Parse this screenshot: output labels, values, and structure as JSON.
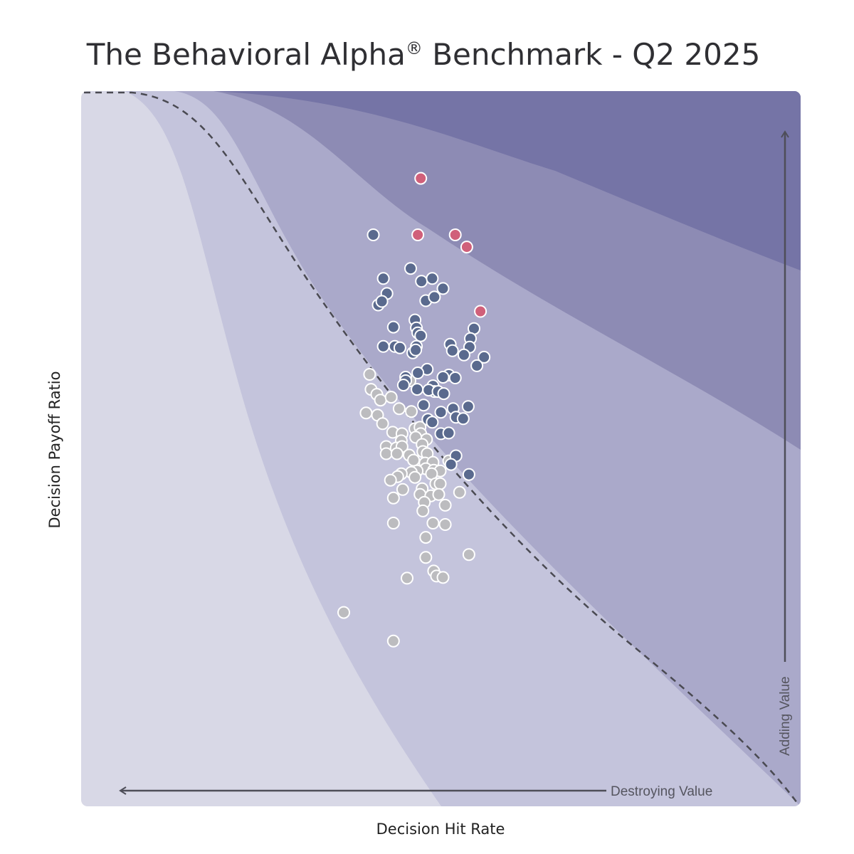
{
  "title": "The Behavioral Alpha",
  "title_mark": "®",
  "title_suffix": " Benchmark - Q2 2025",
  "colors": {
    "zone1": "#d8d8e6",
    "zone2": "#c4c4dc",
    "zone3": "#aaa9ca",
    "zone4": "#8d8bb4",
    "zone5": "#7574a6",
    "point_grey": "#bcbcbf",
    "point_blue": "#5a6a8e",
    "point_red": "#d0607a",
    "arrow": "#4e4e58"
  },
  "chart_data": {
    "type": "scatter",
    "title": "The Behavioral Alpha® Benchmark - Q2 2025",
    "xlabel": "Decision Hit Rate",
    "ylabel": "Decision Payoff Ratio",
    "xlim": [
      0,
      100
    ],
    "ylim": [
      0,
      100
    ],
    "annotations": [
      "Destroying Value",
      "Adding Value"
    ],
    "series": [
      {
        "color": "#d0607a",
        "points": [
          [
            47.2,
            87.8
          ],
          [
            46.8,
            79.9
          ],
          [
            52.0,
            79.9
          ],
          [
            53.6,
            78.2
          ],
          [
            55.5,
            69.2
          ]
        ]
      },
      {
        "color": "#5a6a8e",
        "points": [
          [
            40.6,
            79.9
          ],
          [
            45.8,
            75.2
          ],
          [
            42.0,
            73.8
          ],
          [
            47.3,
            73.4
          ],
          [
            48.8,
            73.8
          ],
          [
            50.3,
            72.4
          ],
          [
            42.5,
            71.7
          ],
          [
            47.9,
            70.7
          ],
          [
            49.1,
            71.2
          ],
          [
            41.3,
            70.1
          ],
          [
            41.8,
            70.6
          ],
          [
            46.4,
            68.0
          ],
          [
            43.4,
            67.0
          ],
          [
            46.6,
            66.9
          ],
          [
            46.8,
            66.2
          ],
          [
            47.2,
            65.8
          ],
          [
            54.6,
            66.8
          ],
          [
            54.1,
            65.4
          ],
          [
            42.0,
            64.3
          ],
          [
            43.6,
            64.3
          ],
          [
            44.3,
            64.1
          ],
          [
            46.6,
            64.3
          ],
          [
            51.3,
            64.6
          ],
          [
            54.0,
            64.2
          ],
          [
            51.6,
            63.7
          ],
          [
            53.2,
            63.1
          ],
          [
            56.0,
            62.8
          ],
          [
            46.1,
            63.4
          ],
          [
            46.5,
            63.8
          ],
          [
            55.0,
            61.6
          ],
          [
            48.1,
            61.1
          ],
          [
            51.1,
            60.3
          ],
          [
            45.1,
            60.0
          ],
          [
            46.8,
            60.6
          ],
          [
            50.3,
            60.0
          ],
          [
            52.0,
            59.9
          ],
          [
            45.1,
            59.5
          ],
          [
            44.8,
            58.9
          ],
          [
            48.9,
            58.8
          ],
          [
            49.1,
            58.0
          ],
          [
            46.7,
            58.3
          ],
          [
            48.3,
            58.2
          ],
          [
            49.6,
            58.0
          ],
          [
            50.4,
            57.7
          ],
          [
            47.6,
            56.1
          ],
          [
            53.8,
            55.9
          ],
          [
            51.7,
            55.6
          ],
          [
            50.0,
            55.1
          ],
          [
            52.1,
            54.4
          ],
          [
            53.1,
            54.2
          ],
          [
            48.2,
            54.1
          ],
          [
            48.8,
            53.7
          ],
          [
            50.0,
            52.1
          ],
          [
            51.1,
            52.2
          ],
          [
            52.1,
            49.0
          ],
          [
            51.4,
            47.8
          ],
          [
            53.9,
            46.4
          ]
        ]
      },
      {
        "color": "#bcbcbf",
        "points": [
          [
            40.1,
            60.4
          ],
          [
            40.3,
            58.3
          ],
          [
            41.1,
            57.6
          ],
          [
            41.6,
            56.8
          ],
          [
            43.1,
            57.2
          ],
          [
            45.7,
            59.5
          ],
          [
            39.6,
            55.0
          ],
          [
            41.2,
            54.7
          ],
          [
            44.2,
            55.6
          ],
          [
            45.9,
            55.2
          ],
          [
            41.9,
            53.5
          ],
          [
            46.4,
            52.8
          ],
          [
            47.1,
            53.0
          ],
          [
            43.3,
            52.3
          ],
          [
            44.6,
            52.1
          ],
          [
            47.2,
            52.1
          ],
          [
            48.0,
            51.3
          ],
          [
            44.5,
            51.1
          ],
          [
            46.5,
            51.6
          ],
          [
            42.4,
            50.3
          ],
          [
            43.8,
            50.1
          ],
          [
            44.6,
            50.3
          ],
          [
            47.4,
            50.6
          ],
          [
            47.5,
            49.6
          ],
          [
            42.4,
            49.3
          ],
          [
            43.9,
            49.3
          ],
          [
            45.6,
            49.1
          ],
          [
            48.1,
            49.3
          ],
          [
            46.2,
            48.4
          ],
          [
            47.8,
            48.0
          ],
          [
            48.9,
            48.1
          ],
          [
            51.1,
            48.3
          ],
          [
            47.9,
            47.2
          ],
          [
            49.0,
            47.0
          ],
          [
            46.7,
            46.9
          ],
          [
            45.9,
            46.7
          ],
          [
            49.9,
            46.9
          ],
          [
            44.5,
            46.5
          ],
          [
            44.0,
            46.1
          ],
          [
            46.4,
            46.0
          ],
          [
            48.7,
            46.5
          ],
          [
            43.0,
            45.6
          ],
          [
            49.3,
            45.1
          ],
          [
            49.9,
            45.1
          ],
          [
            47.4,
            44.4
          ],
          [
            44.7,
            44.3
          ],
          [
            47.1,
            43.6
          ],
          [
            48.6,
            43.4
          ],
          [
            49.7,
            43.6
          ],
          [
            52.6,
            43.9
          ],
          [
            43.4,
            43.1
          ],
          [
            47.7,
            42.5
          ],
          [
            50.6,
            42.1
          ],
          [
            47.5,
            41.3
          ],
          [
            43.4,
            39.6
          ],
          [
            48.9,
            39.6
          ],
          [
            50.6,
            39.4
          ],
          [
            47.9,
            37.6
          ],
          [
            53.9,
            35.2
          ],
          [
            47.9,
            34.8
          ],
          [
            49.0,
            32.9
          ],
          [
            49.4,
            32.2
          ],
          [
            45.3,
            31.9
          ],
          [
            50.3,
            32.0
          ],
          [
            36.5,
            27.1
          ],
          [
            43.4,
            23.1
          ]
        ]
      }
    ]
  }
}
